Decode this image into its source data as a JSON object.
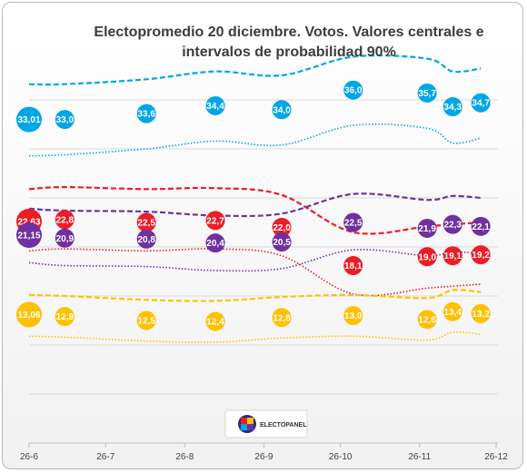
{
  "chart_data": {
    "type": "line",
    "title_lines": [
      "Electopromedio 20 diciembre. Votos. Valores centrales e",
      "intervalos de probabilidad 90%"
    ],
    "x_ticks": [
      "26-6",
      "26-7",
      "26-8",
      "26-9",
      "26-10",
      "26-11",
      "26-12"
    ],
    "tick_days": [
      0,
      30,
      61,
      92,
      122,
      153,
      183
    ],
    "ylim": [
      0,
      40
    ],
    "grid": true,
    "logo_text": "ELECTOPANEL",
    "colors": {
      "blue": "#00a6e6",
      "red": "#ee1c25",
      "purple": "#7030a0",
      "yellow": "#ffc000"
    },
    "series": [
      {
        "key": "blue",
        "color": "#00a6e6",
        "points": [
          {
            "day": 0,
            "value": 33.0,
            "label": "33,01"
          },
          {
            "day": 14,
            "value": 33.0,
            "label": "33,0"
          },
          {
            "day": 46,
            "value": 33.6,
            "label": "33,6"
          },
          {
            "day": 73,
            "value": 34.4,
            "label": "34,4"
          },
          {
            "day": 99,
            "value": 34.0,
            "label": "34,0"
          },
          {
            "day": 127,
            "value": 36.0,
            "label": "36,0"
          },
          {
            "day": 156,
            "value": 35.7,
            "label": "35,7"
          },
          {
            "day": 166,
            "value": 34.3,
            "label": "34,3"
          },
          {
            "day": 177,
            "value": 34.7,
            "label": "34,7"
          }
        ],
        "upper": [
          [
            0,
            36.6
          ],
          [
            14,
            36.6
          ],
          [
            46,
            37.1
          ],
          [
            73,
            37.9
          ],
          [
            99,
            37.5
          ],
          [
            127,
            39.4
          ],
          [
            156,
            39.2
          ],
          [
            166,
            37.9
          ],
          [
            177,
            38.2
          ]
        ],
        "lower": [
          [
            0,
            29.3
          ],
          [
            14,
            29.4
          ],
          [
            46,
            30.0
          ],
          [
            73,
            30.8
          ],
          [
            99,
            30.4
          ],
          [
            127,
            32.4
          ],
          [
            156,
            32.1
          ],
          [
            166,
            30.6
          ],
          [
            177,
            31.1
          ]
        ]
      },
      {
        "key": "red",
        "color": "#ee1c25",
        "points": [
          {
            "day": 0,
            "value": 22.6,
            "label": "22,63"
          },
          {
            "day": 14,
            "value": 22.8,
            "label": "22,8"
          },
          {
            "day": 46,
            "value": 22.5,
            "label": "22,5"
          },
          {
            "day": 73,
            "value": 22.7,
            "label": "22,7"
          },
          {
            "day": 99,
            "value": 22.0,
            "label": "22,0"
          },
          {
            "day": 127,
            "value": 18.1,
            "label": "18,1"
          },
          {
            "day": 156,
            "value": 19.0,
            "label": "19,0"
          },
          {
            "day": 166,
            "value": 19.1,
            "label": "19,1"
          },
          {
            "day": 177,
            "value": 19.2,
            "label": "19,2"
          }
        ],
        "upper": [
          [
            0,
            25.9
          ],
          [
            14,
            26.1
          ],
          [
            46,
            25.9
          ],
          [
            73,
            26.0
          ],
          [
            99,
            25.3
          ],
          [
            127,
            21.5
          ],
          [
            156,
            22.1
          ],
          [
            166,
            22.3
          ],
          [
            177,
            22.5
          ]
        ],
        "lower": [
          [
            0,
            19.6
          ],
          [
            14,
            19.8
          ],
          [
            46,
            19.6
          ],
          [
            73,
            19.8
          ],
          [
            99,
            19.1
          ],
          [
            127,
            15.2
          ],
          [
            156,
            15.8
          ],
          [
            166,
            16.0
          ],
          [
            177,
            16.2
          ]
        ]
      },
      {
        "key": "purple",
        "color": "#7030a0",
        "points": [
          {
            "day": 0,
            "value": 21.2,
            "label": "21,15"
          },
          {
            "day": 14,
            "value": 20.9,
            "label": "20,9"
          },
          {
            "day": 46,
            "value": 20.8,
            "label": "20,8"
          },
          {
            "day": 73,
            "value": 20.4,
            "label": "20,4"
          },
          {
            "day": 99,
            "value": 20.5,
            "label": "20,5"
          },
          {
            "day": 127,
            "value": 22.5,
            "label": "22,5"
          },
          {
            "day": 156,
            "value": 21.9,
            "label": "21,9"
          },
          {
            "day": 166,
            "value": 22.3,
            "label": "22,3"
          },
          {
            "day": 177,
            "value": 22.1,
            "label": "22,1"
          }
        ],
        "upper": [
          [
            0,
            23.9
          ],
          [
            14,
            23.7
          ],
          [
            46,
            23.6
          ],
          [
            73,
            23.2
          ],
          [
            99,
            23.4
          ],
          [
            127,
            25.4
          ],
          [
            156,
            24.8
          ],
          [
            166,
            25.2
          ],
          [
            177,
            25.0
          ]
        ],
        "lower": [
          [
            0,
            18.4
          ],
          [
            14,
            18.1
          ],
          [
            46,
            18.0
          ],
          [
            73,
            17.6
          ],
          [
            99,
            17.8
          ],
          [
            127,
            19.7
          ],
          [
            156,
            19.1
          ],
          [
            166,
            19.5
          ],
          [
            177,
            19.3
          ]
        ]
      },
      {
        "key": "yellow",
        "color": "#ffc000",
        "points": [
          {
            "day": 0,
            "value": 13.1,
            "label": "13,06"
          },
          {
            "day": 14,
            "value": 12.9,
            "label": "12,9"
          },
          {
            "day": 46,
            "value": 12.5,
            "label": "12,5"
          },
          {
            "day": 73,
            "value": 12.4,
            "label": "12,4"
          },
          {
            "day": 99,
            "value": 12.8,
            "label": "12,8"
          },
          {
            "day": 127,
            "value": 13.0,
            "label": "13,0"
          },
          {
            "day": 156,
            "value": 12.6,
            "label": "12,6"
          },
          {
            "day": 166,
            "value": 13.4,
            "label": "13,4"
          },
          {
            "day": 177,
            "value": 13.2,
            "label": "13,2"
          }
        ],
        "upper": [
          [
            0,
            15.1
          ],
          [
            14,
            15.0
          ],
          [
            46,
            14.6
          ],
          [
            73,
            14.5
          ],
          [
            99,
            14.9
          ],
          [
            127,
            15.1
          ],
          [
            156,
            14.8
          ],
          [
            166,
            15.6
          ],
          [
            177,
            15.4
          ]
        ],
        "lower": [
          [
            0,
            10.9
          ],
          [
            14,
            10.8
          ],
          [
            46,
            10.4
          ],
          [
            73,
            10.3
          ],
          [
            99,
            10.7
          ],
          [
            127,
            10.9
          ],
          [
            156,
            10.5
          ],
          [
            166,
            11.3
          ],
          [
            177,
            11.1
          ]
        ]
      }
    ]
  }
}
